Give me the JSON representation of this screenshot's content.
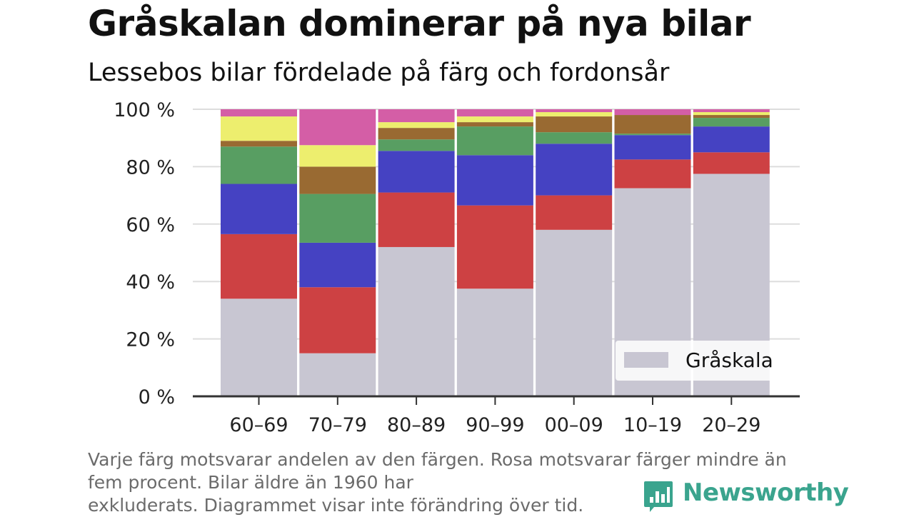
{
  "title": "Gråskalan dominerar på nya bilar",
  "subtitle": "Lessebos bilar fördelade på färg och fordonsår",
  "note": {
    "line1": "Varje färg motsvarar andelen av den färgen. Rosa motsvarar färger mindre än",
    "line2": "fem procent. Bilar äldre än 1960 har",
    "line3": "exkluderats. Diagrammet visar inte förändring över tid."
  },
  "brand": {
    "name": "Newsworthy",
    "color": "#3aa48e",
    "icon": "newsworthy-chart-icon"
  },
  "chart_data": {
    "type": "bar",
    "stacked": true,
    "categories": [
      "60–69",
      "70–79",
      "80–89",
      "90–99",
      "00–09",
      "10–19",
      "20–29"
    ],
    "ylim": [
      0,
      100
    ],
    "yticks": [
      0,
      20,
      40,
      60,
      80,
      100
    ],
    "ytick_labels": [
      "0 %",
      "20 %",
      "40 %",
      "60 %",
      "80 %",
      "100 %"
    ],
    "grid": true,
    "series": [
      {
        "name": "Gråskala",
        "color": "#c8c6d2",
        "values": [
          34,
          15,
          52,
          37.5,
          58,
          72.5,
          77.5
        ]
      },
      {
        "color": "#cd4143",
        "values": [
          22.5,
          23,
          19,
          29,
          12,
          10,
          7.5
        ]
      },
      {
        "color": "#4542c2",
        "values": [
          17.5,
          15.5,
          14.5,
          17.5,
          18,
          8.5,
          9
        ]
      },
      {
        "color": "#589e62",
        "values": [
          13,
          17,
          4,
          10,
          4,
          0.5,
          3
        ]
      },
      {
        "color": "#996a32",
        "values": [
          2,
          9.5,
          4,
          1.5,
          5.5,
          6.5,
          1
        ]
      },
      {
        "color": "#edee6e",
        "values": [
          8.5,
          7.5,
          2,
          2,
          1.5,
          0,
          1
        ]
      },
      {
        "color": "#d45ea6",
        "values": [
          2.5,
          12.5,
          4.5,
          2.5,
          1,
          2,
          1
        ]
      }
    ],
    "legend": {
      "position": "bottom-right",
      "entries": [
        "Gråskala"
      ]
    }
  }
}
